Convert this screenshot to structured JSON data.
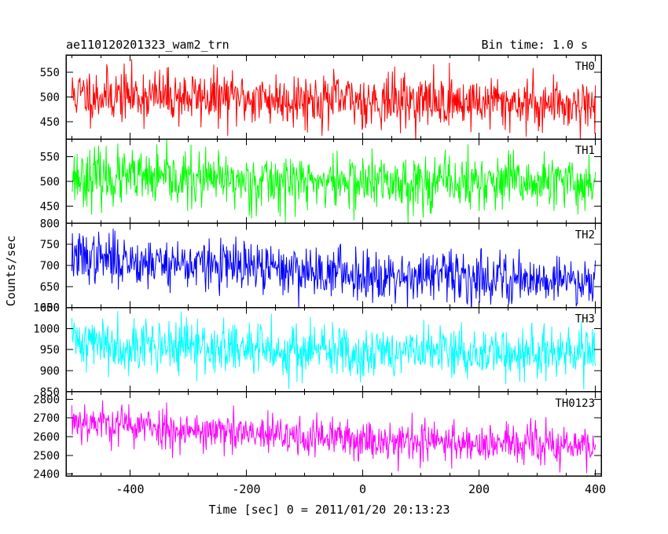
{
  "header": {
    "title": "ae110120201323_wam2_trn",
    "bin_time": "Bin time: 1.0 s"
  },
  "axes": {
    "xlabel": "Time [sec] 0 = 2011/01/20 20:13:23",
    "ylabel": "Counts/sec"
  },
  "chart_data": {
    "type": "line",
    "title": "ae110120201323_wam2_trn",
    "subtitle": "Bin time: 1.0 s",
    "xlabel": "Time [sec] 0 = 2011/01/20 20:13:23",
    "ylabel": "Counts/sec",
    "xlim": [
      -510,
      410
    ],
    "x_ticks": [
      "-400",
      "-200",
      "0",
      "200",
      "400"
    ],
    "x_tick_values": [
      -400,
      -200,
      0,
      200,
      400
    ],
    "x_range_data": [
      -500,
      400
    ],
    "bin_time_s": 1.0,
    "panels": [
      {
        "name": "TH0",
        "color": "#ff0000",
        "ylim": [
          415,
          585
        ],
        "y_ticks": [
          450,
          500,
          550
        ],
        "y_tick_labels": [
          "450",
          "500",
          "550"
        ],
        "trend": [
          [
            -500,
            505
          ],
          [
            -400,
            503
          ],
          [
            -200,
            497
          ],
          [
            0,
            493
          ],
          [
            200,
            490
          ],
          [
            400,
            485
          ]
        ],
        "noise_sd": 27,
        "seed": 11
      },
      {
        "name": "TH1",
        "color": "#00ff00",
        "ylim": [
          415,
          585
        ],
        "y_ticks": [
          450,
          500,
          550
        ],
        "y_tick_labels": [
          "450",
          "500",
          "550"
        ],
        "trend": [
          [
            -500,
            510
          ],
          [
            -400,
            505
          ],
          [
            -200,
            500
          ],
          [
            0,
            498
          ],
          [
            200,
            497
          ],
          [
            400,
            495
          ]
        ],
        "noise_sd": 28,
        "seed": 23
      },
      {
        "name": "TH2",
        "color": "#0000ff",
        "ylim": [
          600,
          800
        ],
        "y_ticks": [
          600,
          650,
          700,
          750,
          800
        ],
        "y_tick_labels": [
          "600",
          "650",
          "700",
          "750",
          "800"
        ],
        "trend": [
          [
            -500,
            720
          ],
          [
            -400,
            712
          ],
          [
            -200,
            695
          ],
          [
            0,
            680
          ],
          [
            200,
            672
          ],
          [
            400,
            665
          ]
        ],
        "noise_sd": 30,
        "seed": 37
      },
      {
        "name": "TH3",
        "color": "#00ffff",
        "ylim": [
          850,
          1050
        ],
        "y_ticks": [
          850,
          900,
          950,
          1000,
          1050
        ],
        "y_tick_labels": [
          "850",
          "900",
          "950",
          "1000",
          "1050"
        ],
        "trend": [
          [
            -500,
            972
          ],
          [
            -400,
            962
          ],
          [
            -200,
            950
          ],
          [
            0,
            945
          ],
          [
            200,
            942
          ],
          [
            400,
            938
          ]
        ],
        "noise_sd": 32,
        "seed": 41
      },
      {
        "name": "TH0123",
        "color": "#ff00ff",
        "ylim": [
          2390,
          2840
        ],
        "y_ticks": [
          2400,
          2500,
          2600,
          2700,
          2800
        ],
        "y_tick_labels": [
          "2400",
          "2500",
          "2600",
          "2700",
          "2800"
        ],
        "trend": [
          [
            -500,
            2690
          ],
          [
            -400,
            2660
          ],
          [
            -200,
            2610
          ],
          [
            0,
            2585
          ],
          [
            200,
            2565
          ],
          [
            400,
            2545
          ]
        ],
        "noise_sd": 55,
        "seed": 53
      }
    ],
    "grid": false,
    "legend": "none"
  }
}
